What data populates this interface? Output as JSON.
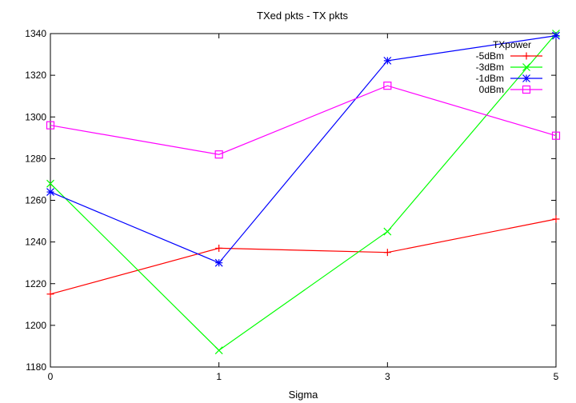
{
  "chart_data": {
    "type": "line",
    "title": "TXed pkts - TX pkts",
    "xlabel": "Sigma",
    "ylabel": "",
    "categories": [
      "0",
      "1",
      "3",
      "5"
    ],
    "ylim": [
      1180,
      1340
    ],
    "yticks": [
      1180,
      1200,
      1220,
      1240,
      1260,
      1280,
      1300,
      1320,
      1340
    ],
    "grid": false,
    "legend_title": "TXpower",
    "legend_position": "top-right",
    "series": [
      {
        "name": "-5dBm",
        "values": [
          1215,
          1237,
          1235,
          1251
        ],
        "color": "#ff0000",
        "marker": "plus"
      },
      {
        "name": "-3dBm",
        "values": [
          1268,
          1188,
          1245,
          1340
        ],
        "color": "#00ff00",
        "marker": "cross"
      },
      {
        "name": "-1dBm",
        "values": [
          1264,
          1230,
          1327,
          1339
        ],
        "color": "#0000ff",
        "marker": "star"
      },
      {
        "name": "0dBm",
        "values": [
          1296,
          1282,
          1315,
          1291
        ],
        "color": "#ff00ff",
        "marker": "square"
      }
    ]
  }
}
